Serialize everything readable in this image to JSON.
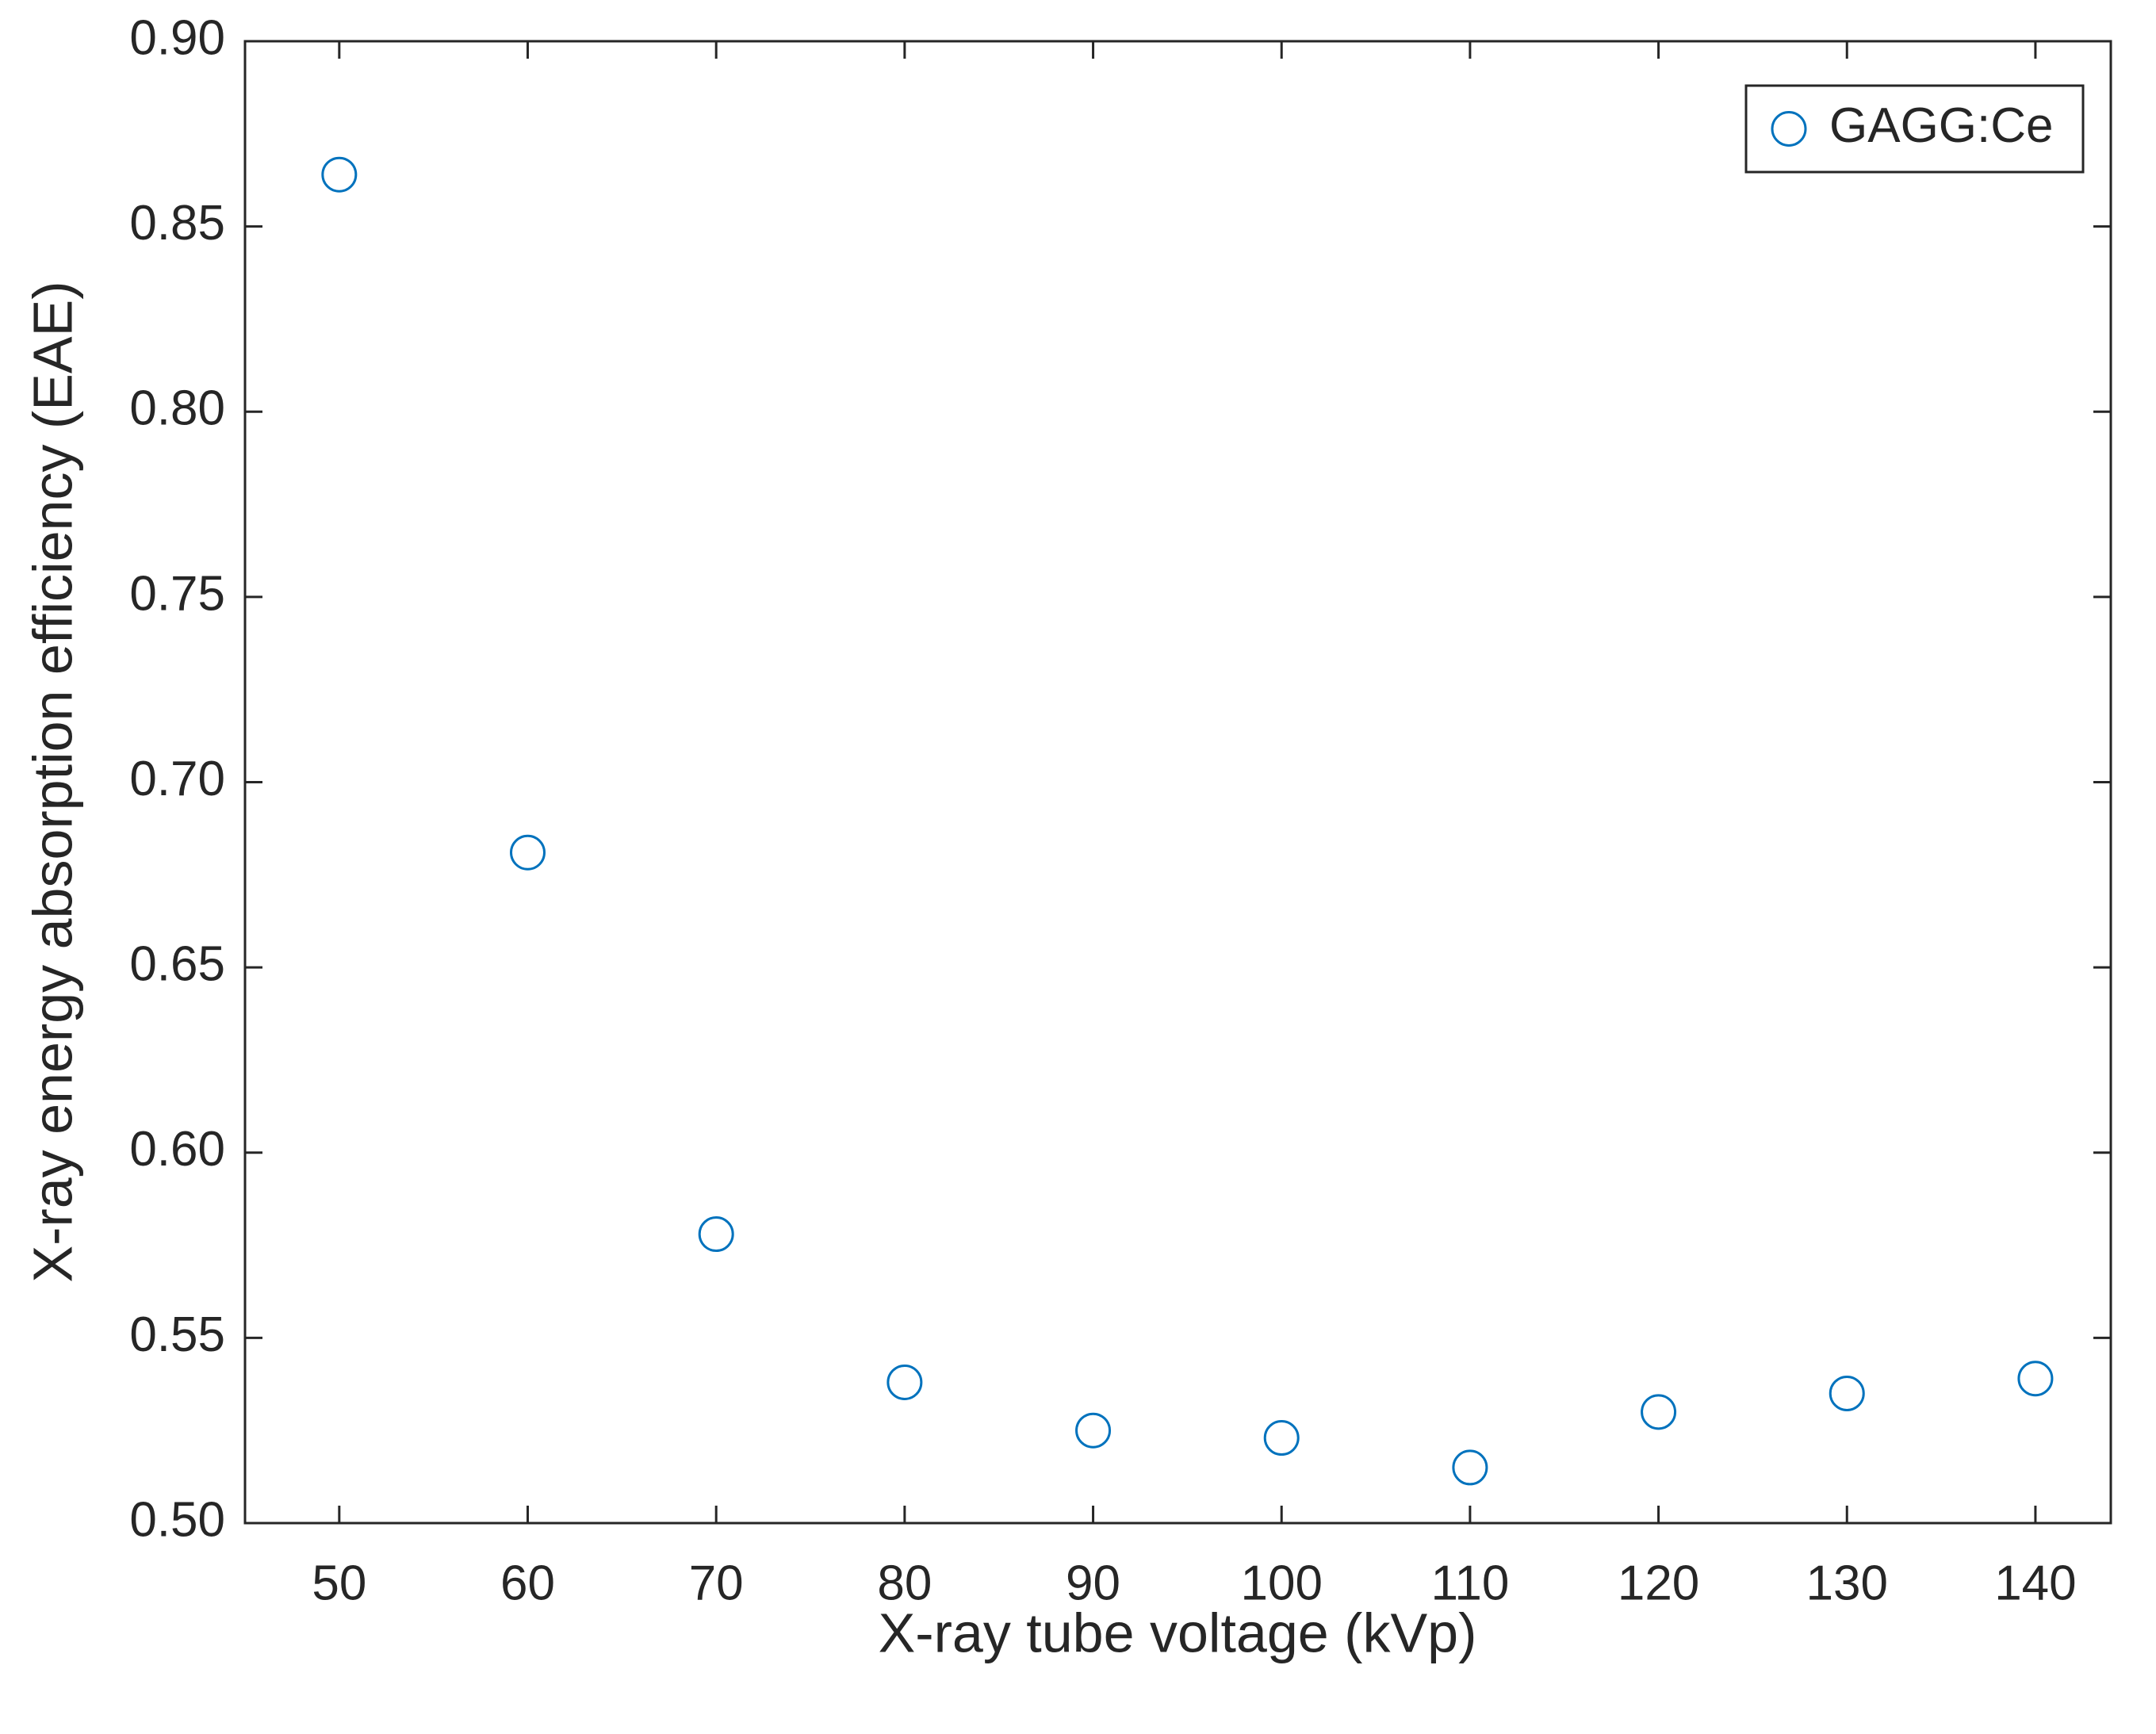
{
  "chart_data": {
    "type": "scatter",
    "xlabel": "X-ray tube voltage (kVp)",
    "ylabel": "X-ray energy absorption efficiency (EAE)",
    "series": [
      {
        "name": "GAGG:Ce",
        "color": "#0072bd",
        "x": [
          50,
          60,
          70,
          80,
          90,
          100,
          110,
          120,
          130,
          140
        ],
        "values": [
          0.864,
          0.681,
          0.578,
          0.538,
          0.525,
          0.523,
          0.515,
          0.53,
          0.535,
          0.539
        ]
      }
    ],
    "xlim": [
      45,
      144
    ],
    "ylim": [
      0.5,
      0.9
    ],
    "xticks": [
      50,
      60,
      70,
      80,
      90,
      100,
      110,
      120,
      130,
      140
    ],
    "yticks": [
      {
        "value": 0.5,
        "label": "0.50"
      },
      {
        "value": 0.55,
        "label": "0.55"
      },
      {
        "value": 0.6,
        "label": "0.60"
      },
      {
        "value": 0.65,
        "label": "0.65"
      },
      {
        "value": 0.7,
        "label": "0.70"
      },
      {
        "value": 0.75,
        "label": "0.75"
      },
      {
        "value": 0.8,
        "label": "0.80"
      },
      {
        "value": 0.85,
        "label": "0.85"
      },
      {
        "value": 0.9,
        "label": "0.90"
      }
    ],
    "legend": "upper right",
    "grid": false
  }
}
